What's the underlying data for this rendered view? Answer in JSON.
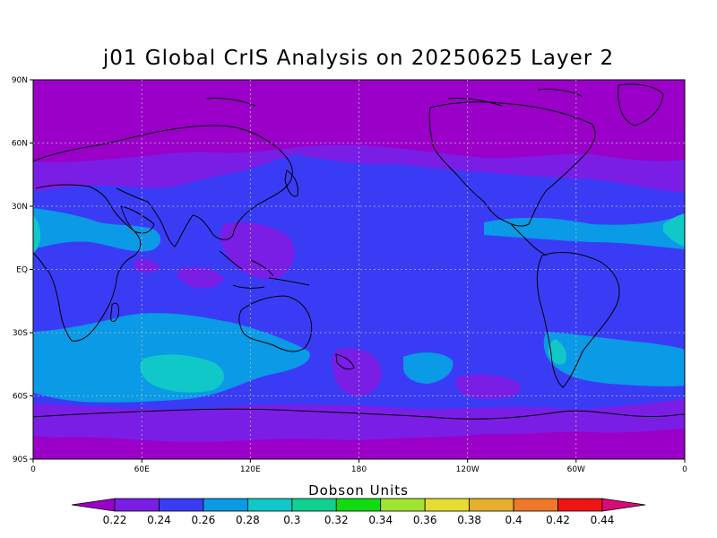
{
  "title": "j01 Global CrIS Analysis on 20250625 Layer 2",
  "colorbar": {
    "title": "Dobson Units",
    "labels": [
      "0.22",
      "0.24",
      "0.26",
      "0.28",
      "0.3",
      "0.32",
      "0.34",
      "0.36",
      "0.38",
      "0.4",
      "0.42",
      "0.44"
    ],
    "colors": [
      "#9a00c8",
      "#7a1ee6",
      "#3a3cf5",
      "#0a9ae6",
      "#10c8c8",
      "#10d090",
      "#10dc10",
      "#a0e630",
      "#e6dc32",
      "#e6af2d",
      "#f07828",
      "#f01414",
      "#dc0a78"
    ]
  },
  "map": {
    "lat_labels": [
      "90N",
      "60N",
      "30N",
      "EQ",
      "30S",
      "60S",
      "90S"
    ],
    "lon_labels": [
      "0",
      "60E",
      "120E",
      "180",
      "120W",
      "60W",
      "0"
    ],
    "colors": {
      "violet": "#9a00c8",
      "purple": "#7a1ee6",
      "blue": "#3a3cf5",
      "lightblue": "#0a9ae6",
      "cyan": "#10c8c8"
    }
  }
}
